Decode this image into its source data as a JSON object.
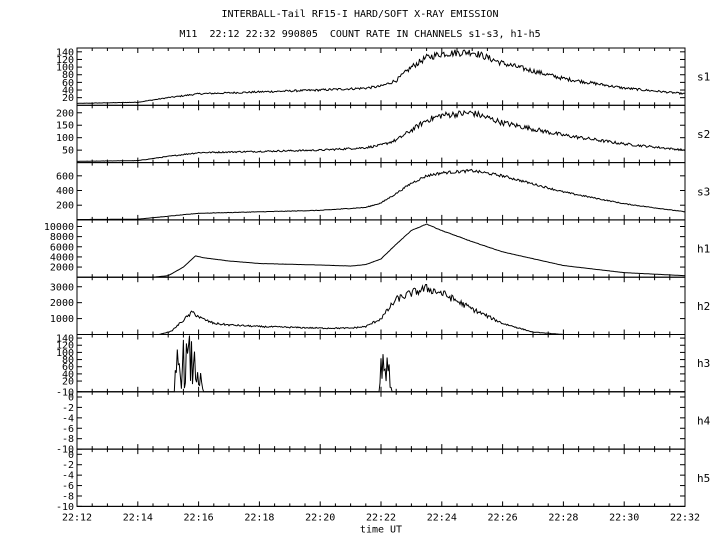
{
  "title": "INTERBALL-Tail RF15-I HARD/SOFT X-RAY EMISSION",
  "subtitle": "M11  22:12 22:32 990805  COUNT RATE IN CHANNELS s1-s3, h1-h5",
  "chart_data": {
    "type": "line",
    "title": "INTERBALL-Tail RF15-I HARD/SOFT X-RAY EMISSION",
    "subtitle": "M11  22:12 22:32 990805  COUNT RATE IN CHANNELS s1-s3, h1-h5",
    "xlabel": "time UT",
    "x_range_minutes": [
      0,
      20
    ],
    "x_ticks": [
      "22:12",
      "22:14",
      "22:16",
      "22:18",
      "22:20",
      "22:22",
      "22:24",
      "22:26",
      "22:28",
      "22:30",
      "22:32"
    ],
    "panels": [
      {
        "name": "s1",
        "ylim": [
          0,
          150
        ],
        "yticks": [
          20,
          40,
          60,
          80,
          100,
          120,
          140
        ],
        "noise": 0.07,
        "x": [
          0,
          2,
          3,
          4,
          6,
          8,
          9.5,
          10,
          10.5,
          11,
          11.5,
          12,
          13,
          14,
          16,
          18,
          20
        ],
        "y": [
          5,
          8,
          20,
          30,
          35,
          40,
          45,
          50,
          65,
          100,
          125,
          135,
          140,
          110,
          70,
          45,
          30
        ]
      },
      {
        "name": "s2",
        "ylim": [
          0,
          230
        ],
        "yticks": [
          50,
          100,
          150,
          200
        ],
        "noise": 0.07,
        "x": [
          0,
          2,
          3,
          4,
          6,
          8,
          9.5,
          10,
          10.5,
          11,
          11.5,
          12,
          13,
          14,
          16,
          18,
          20
        ],
        "y": [
          5,
          8,
          25,
          40,
          45,
          50,
          60,
          70,
          90,
          130,
          170,
          190,
          200,
          160,
          110,
          75,
          50
        ]
      },
      {
        "name": "s3",
        "ylim": [
          0,
          780
        ],
        "yticks": [
          200,
          400,
          600
        ],
        "noise": 0.03,
        "x": [
          0,
          2,
          3,
          4,
          6,
          8,
          9.5,
          10,
          10.5,
          11,
          11.5,
          12,
          13,
          14,
          16,
          18,
          20
        ],
        "y": [
          5,
          10,
          50,
          90,
          110,
          130,
          170,
          230,
          360,
          500,
          600,
          640,
          670,
          600,
          380,
          220,
          110
        ]
      },
      {
        "name": "h1",
        "ylim": [
          0,
          11300
        ],
        "yticks": [
          2000,
          4000,
          6000,
          8000,
          10000
        ],
        "noise": 0.005,
        "x": [
          0,
          2.5,
          3.0,
          3.5,
          3.9,
          4.2,
          5,
          6,
          8,
          9,
          9.5,
          10,
          10.5,
          11,
          11.5,
          12,
          13,
          14,
          16,
          18,
          20
        ],
        "y": [
          0,
          0,
          300,
          2000,
          4200,
          3800,
          3200,
          2700,
          2400,
          2200,
          2500,
          3600,
          6500,
          9200,
          10500,
          9200,
          7000,
          5000,
          2300,
          900,
          300
        ]
      },
      {
        "name": "h2",
        "ylim": [
          0,
          3600
        ],
        "yticks": [
          1000,
          2000,
          3000
        ],
        "noise": 0.1,
        "x": [
          0,
          2.7,
          3.1,
          3.5,
          3.8,
          4.1,
          4.5,
          5,
          6,
          8,
          9,
          9.5,
          10,
          10.5,
          11,
          11.5,
          12,
          13,
          14,
          15,
          16,
          20
        ],
        "y": [
          0,
          0,
          200,
          900,
          1400,
          1000,
          700,
          600,
          500,
          400,
          400,
          500,
          1000,
          2200,
          2600,
          2900,
          2600,
          1600,
          700,
          150,
          0,
          0
        ]
      },
      {
        "name": "h3",
        "ylim": [
          -10,
          150
        ],
        "yticks": [
          -10,
          20,
          40,
          60,
          80,
          100,
          120,
          140
        ],
        "noise": 0.9,
        "bursts": true,
        "x": [
          0,
          3.2,
          3.25,
          3.7,
          4.0,
          4.15,
          9.95,
          10.0,
          10.25,
          10.35,
          10.4,
          20
        ],
        "y": [
          -10,
          -10,
          60,
          75,
          40,
          -10,
          -10,
          50,
          40,
          -10,
          -10,
          -10
        ]
      },
      {
        "name": "h4",
        "ylim": [
          -10,
          1
        ],
        "yticks": [
          -10,
          -8,
          -6,
          -4,
          -2,
          0
        ],
        "noise": 0,
        "x": [
          0,
          20
        ],
        "y": [
          -10,
          -10
        ]
      },
      {
        "name": "h5",
        "ylim": [
          -10,
          1
        ],
        "yticks": [
          -10,
          -8,
          -6,
          -4,
          -2,
          0
        ],
        "noise": 0,
        "x": [
          0,
          20
        ],
        "y": [
          -10,
          -10
        ]
      }
    ],
    "grid": false,
    "color": "#000000"
  }
}
